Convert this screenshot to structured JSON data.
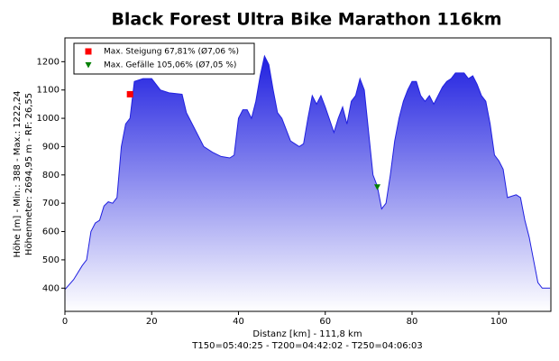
{
  "chart_data": {
    "type": "area",
    "title": "Black Forest Ultra Bike Marathon 116km",
    "y_label_lines": [
      "Höhe [m] - Min.: 388 - Max.: 1222,24",
      "Höhenmeter: 2694,95 m - RF: 26,55"
    ],
    "x_label": "Distanz [km] - 111,8 km",
    "footer": "T150=05:40:25 - T200=04:42:02 - T250=04:06:03",
    "color": "#2020e0",
    "x": [
      0,
      2,
      4,
      5,
      6,
      7,
      8,
      9,
      10,
      11,
      12,
      13,
      14,
      15,
      16,
      18,
      20,
      22,
      24,
      27,
      28,
      30,
      32,
      34,
      36,
      38,
      39,
      40,
      41,
      42,
      43,
      44,
      45,
      46,
      47,
      48,
      49,
      50,
      52,
      54,
      55,
      56,
      57,
      58,
      59,
      60,
      62,
      63,
      64,
      65,
      66,
      67,
      68,
      69,
      70,
      71,
      72,
      73,
      74,
      75,
      76,
      77,
      78,
      79,
      80,
      81,
      82,
      83,
      84,
      85,
      86,
      87,
      88,
      89,
      90,
      92,
      93,
      94,
      95,
      96,
      97,
      98,
      99,
      100,
      101,
      102,
      104,
      105,
      106,
      107,
      108,
      109,
      110,
      111.8
    ],
    "values": [
      395,
      430,
      480,
      500,
      600,
      630,
      640,
      690,
      705,
      700,
      720,
      900,
      980,
      1000,
      1130,
      1140,
      1140,
      1100,
      1090,
      1085,
      1020,
      960,
      900,
      880,
      865,
      860,
      870,
      1000,
      1030,
      1030,
      1000,
      1060,
      1150,
      1220,
      1190,
      1100,
      1020,
      1000,
      920,
      900,
      910,
      1000,
      1080,
      1050,
      1080,
      1040,
      950,
      1000,
      1040,
      980,
      1060,
      1080,
      1140,
      1100,
      950,
      800,
      760,
      680,
      700,
      800,
      920,
      1000,
      1060,
      1100,
      1130,
      1130,
      1080,
      1060,
      1080,
      1050,
      1080,
      1110,
      1130,
      1140,
      1160,
      1160,
      1140,
      1150,
      1120,
      1080,
      1060,
      980,
      870,
      850,
      820,
      720,
      730,
      720,
      640,
      580,
      500,
      420,
      400,
      400
    ],
    "markers": [
      {
        "name": "Max. Steigung 67,81% (Ø7,06 %)",
        "color": "#ff0000",
        "shape": "square",
        "x": 15,
        "y": 1085
      },
      {
        "name": "Max. Gefälle 105,06% (Ø7,05 %)",
        "color": "#008000",
        "shape": "triangle",
        "x": 72,
        "y": 757
      }
    ],
    "xlim": [
      0,
      112
    ],
    "ylim": [
      318,
      1284
    ],
    "xticks": [
      0,
      20,
      40,
      60,
      80,
      100
    ],
    "yticks": [
      400,
      500,
      600,
      700,
      800,
      900,
      1000,
      1100,
      1200
    ],
    "grid": false,
    "legend": "top-left"
  }
}
